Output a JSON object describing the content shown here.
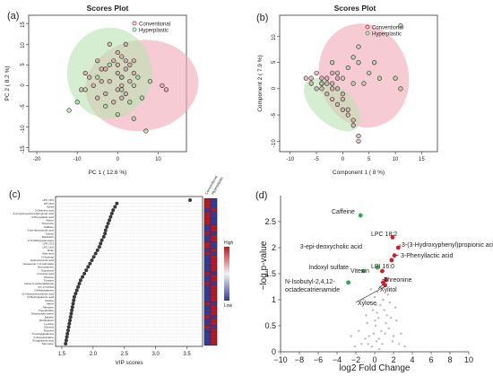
{
  "panels": {
    "a": {
      "letter": "(a)"
    },
    "b": {
      "letter": "(b)"
    },
    "c": {
      "letter": "(c)"
    },
    "d": {
      "letter": "(d)"
    }
  },
  "colors": {
    "conventional": "#c73556",
    "hyperplastic": "#3aa843",
    "conventional_fill": "#f2a9b6",
    "hyperplastic_fill": "#b9e2b3",
    "heat_high": "#c0171b",
    "heat_low": "#2f3d99",
    "volcano_gray": "#b9b9b9",
    "volcano_green": "#2ea84a",
    "volcano_red": "#d21f2a"
  },
  "chart_data": [
    {
      "id": "a",
      "type": "scatter",
      "title": "Scores Plot",
      "xlabel": "PC 1 ( 12.6 %)",
      "ylabel": "PC 2 ( 8.2 %)",
      "xlim": [
        -22,
        17
      ],
      "ylim": [
        -16,
        17
      ],
      "xticks": [
        -20,
        -10,
        0,
        10
      ],
      "yticks": [
        -15,
        -10,
        -5,
        0,
        5,
        10,
        15
      ],
      "legend": [
        "Conventional",
        "Hyperplastic"
      ],
      "legend_position": "top-right",
      "series": [
        {
          "name": "Conventional",
          "points": [
            [
              -8,
              3
            ],
            [
              -5,
              6
            ],
            [
              -4,
              4
            ],
            [
              -3,
              -2
            ],
            [
              -2,
              10
            ],
            [
              -1,
              6
            ],
            [
              0,
              5
            ],
            [
              0,
              3
            ],
            [
              0,
              -1
            ],
            [
              1,
              7
            ],
            [
              1,
              2
            ],
            [
              1,
              0
            ],
            [
              2,
              4
            ],
            [
              2,
              -2
            ],
            [
              3,
              5
            ],
            [
              3,
              1
            ],
            [
              -6,
              0
            ],
            [
              -5,
              -3
            ],
            [
              -1,
              -4
            ],
            [
              -7,
              2
            ],
            [
              -9,
              -1
            ],
            [
              4,
              3
            ],
            [
              0,
              8
            ],
            [
              2,
              10
            ],
            [
              -3,
              4
            ],
            [
              11,
              0
            ],
            [
              12,
              -1
            ],
            [
              1,
              -3
            ],
            [
              -2,
              1
            ],
            [
              4,
              6
            ],
            [
              -4,
              1
            ],
            [
              2,
              6
            ]
          ]
        },
        {
          "name": "Hyperplastic",
          "points": [
            [
              -12,
              -6
            ],
            [
              -10,
              -4
            ],
            [
              -8,
              -1
            ],
            [
              -5,
              2
            ],
            [
              -2,
              5
            ],
            [
              1,
              -1
            ],
            [
              3,
              -4
            ],
            [
              5,
              2
            ],
            [
              6,
              -3
            ],
            [
              7,
              -11
            ],
            [
              8,
              1
            ],
            [
              -3,
              -5
            ],
            [
              0,
              -7
            ],
            [
              4,
              -8
            ],
            [
              1,
              2
            ],
            [
              4,
              0
            ]
          ]
        }
      ]
    },
    {
      "id": "b",
      "type": "scatter",
      "title": "Scores Plot",
      "xlabel": "Component 1 ( 8 %)",
      "ylabel": "Component 2 ( 7.9 %)",
      "xlim": [
        -12,
        18
      ],
      "ylim": [
        -12,
        14
      ],
      "xticks": [
        -10,
        -5,
        0,
        5,
        10,
        15
      ],
      "yticks": [
        -10,
        -5,
        0,
        5,
        10
      ],
      "legend": [
        "Conventional",
        "Hyperplastic"
      ],
      "legend_position": "top-right",
      "series": [
        {
          "name": "Conventional",
          "points": [
            [
              -7,
              2
            ],
            [
              -6,
              1
            ],
            [
              -5,
              3
            ],
            [
              -4,
              1
            ],
            [
              -4,
              0
            ],
            [
              -3,
              2
            ],
            [
              -3,
              -1
            ],
            [
              -2,
              3
            ],
            [
              -2,
              1
            ],
            [
              -2,
              -2
            ],
            [
              -1,
              0
            ],
            [
              -1,
              -3
            ],
            [
              0,
              -2
            ],
            [
              0,
              -4
            ],
            [
              1,
              -4
            ],
            [
              2,
              -6
            ],
            [
              2,
              -7
            ],
            [
              3,
              -9
            ],
            [
              3,
              -10
            ],
            [
              -5,
              0
            ],
            [
              -4,
              2
            ],
            [
              -3,
              1
            ],
            [
              -2,
              0
            ],
            [
              -1,
              2
            ],
            [
              1,
              -5
            ],
            [
              0,
              -1
            ],
            [
              -6,
              2
            ]
          ]
        },
        {
          "name": "Hyperplastic",
          "points": [
            [
              -2,
              5
            ],
            [
              -1,
              3
            ],
            [
              1,
              4
            ],
            [
              2,
              6
            ],
            [
              3,
              8
            ],
            [
              3,
              5
            ],
            [
              4,
              1
            ],
            [
              5,
              3
            ],
            [
              2,
              1
            ],
            [
              10,
              2
            ],
            [
              11,
              0
            ],
            [
              11,
              12
            ],
            [
              -4,
              1
            ],
            [
              0,
              2
            ],
            [
              6,
              5
            ],
            [
              7,
              2
            ]
          ]
        }
      ]
    },
    {
      "id": "c",
      "type": "scatter",
      "xlabel": "VIP scores",
      "xlim": [
        1.4,
        3.75
      ],
      "xticks": [
        1.5,
        2.0,
        2.5,
        3.0,
        3.5
      ],
      "heatmap_columns": [
        "Conventional",
        "Hyperplastic"
      ],
      "heatmap_legend": [
        "High",
        "Low"
      ],
      "features": [
        "LPC 18:2",
        "LPI 16:0",
        "Xylitol",
        "3-Deamino acid",
        "3-(3-Hydroxyphenyl)propionic acid",
        "3-Phenyllactic acid",
        "Vitexin",
        "Threonine",
        "Caffeine",
        "3-epi-deoxycholic acid",
        "Xylose",
        "Bacitracin",
        "3'-O-Methylguanosine",
        "LPE 20:3",
        "LPC 16:0",
        "Rutin",
        "Oleic acid",
        "N-Isobutyl",
        "Hydrocinnamic acid",
        "Hesperetin 7-O-rutinoside",
        "Hyoscyamine",
        "Ergosterol",
        "Cinnamic acid",
        "Nicotine",
        "Tyrosine",
        "Indole-3-carboxaldehyde",
        "PC 17:0/16:0",
        "N-Methylalanine",
        "12-Hydroxyeicosanoic acid",
        "N-Methylglutamic acid",
        "Choline",
        "Valine",
        "Palmitine",
        "Theophylline",
        "Dihydroxybenzene",
        "Betaine",
        "Dethiobiotin",
        "Leucine",
        "Glycerol",
        "Thymine",
        "N-Acetylglutamine",
        "O-Acetylcarnitine",
        "Pyroglutamic acid",
        "Sarcosine"
      ],
      "values": [
        3.55,
        2.38,
        2.35,
        2.32,
        2.3,
        2.28,
        2.26,
        2.24,
        2.22,
        2.2,
        2.19,
        2.17,
        2.14,
        2.12,
        2.1,
        2.07,
        2.04,
        2.01,
        1.98,
        1.95,
        1.92,
        1.89,
        1.86,
        1.83,
        1.8,
        1.78,
        1.76,
        1.74,
        1.72,
        1.7,
        1.69,
        1.68,
        1.67,
        1.66,
        1.65,
        1.64,
        1.63,
        1.62,
        1.61,
        1.6,
        1.59,
        1.58,
        1.57,
        1.56
      ],
      "heat": [
        [
          0.95,
          0.05
        ],
        [
          0.9,
          0.1
        ],
        [
          0.9,
          0.1
        ],
        [
          0.1,
          0.9
        ],
        [
          0.9,
          0.1
        ],
        [
          0.9,
          0.1
        ],
        [
          0.85,
          0.15
        ],
        [
          0.85,
          0.15
        ],
        [
          0.1,
          0.9
        ],
        [
          0.1,
          0.9
        ],
        [
          0.85,
          0.15
        ],
        [
          0.15,
          0.85
        ],
        [
          0.2,
          0.8
        ],
        [
          0.8,
          0.2
        ],
        [
          0.85,
          0.15
        ],
        [
          0.15,
          0.85
        ],
        [
          0.85,
          0.15
        ],
        [
          0.1,
          0.9
        ],
        [
          0.15,
          0.85
        ],
        [
          0.2,
          0.8
        ],
        [
          0.15,
          0.85
        ],
        [
          0.2,
          0.8
        ],
        [
          0.8,
          0.2
        ],
        [
          0.15,
          0.85
        ],
        [
          0.2,
          0.8
        ],
        [
          0.8,
          0.2
        ],
        [
          0.15,
          0.85
        ],
        [
          0.2,
          0.8
        ],
        [
          0.15,
          0.85
        ],
        [
          0.2,
          0.8
        ],
        [
          0.15,
          0.85
        ],
        [
          0.8,
          0.2
        ],
        [
          0.15,
          0.85
        ],
        [
          0.2,
          0.8
        ],
        [
          0.15,
          0.85
        ],
        [
          0.85,
          0.15
        ],
        [
          0.2,
          0.8
        ],
        [
          0.15,
          0.85
        ],
        [
          0.8,
          0.2
        ],
        [
          0.15,
          0.85
        ],
        [
          0.2,
          0.8
        ],
        [
          0.15,
          0.85
        ],
        [
          0.2,
          0.8
        ],
        [
          0.15,
          0.85
        ]
      ]
    },
    {
      "id": "d",
      "type": "scatter",
      "xlabel": "log2 Fold Change",
      "ylabel": "−log p-value",
      "xlim": [
        -10,
        10
      ],
      "ylim": [
        0,
        3
      ],
      "xticks": [
        -10,
        -8,
        -6,
        -4,
        -2,
        0,
        2,
        4,
        6,
        8,
        10
      ],
      "yticks": [
        0,
        0.5,
        1,
        1.5,
        2,
        2.5
      ],
      "labeled_points": [
        {
          "label": "Caffeine",
          "x": -1.5,
          "y": 2.62,
          "group": "down"
        },
        {
          "label": "LPC 18:2",
          "x": 1.9,
          "y": 2.2,
          "group": "up"
        },
        {
          "label": "3-(3-Hydroxyphenyl)propionic acid",
          "x": 2.5,
          "y": 2.0,
          "group": "up"
        },
        {
          "label": "3-Phenyllactic acid",
          "x": 2.1,
          "y": 1.85,
          "group": "up"
        },
        {
          "label": "3-epi-deoxycholic acid",
          "x": 0.3,
          "y": 1.62,
          "group": "down"
        },
        {
          "label": "LPI 16:0",
          "x": 1.8,
          "y": 1.76,
          "group": "up"
        },
        {
          "label": "Indoxyl sulfate",
          "x": -1.2,
          "y": 1.55,
          "group": "down"
        },
        {
          "label": "Vitexin",
          "x": 0.8,
          "y": 1.55,
          "group": "up"
        },
        {
          "label": "N-Isobutyl-2,4,12-octadecatrienamide",
          "x": -2.8,
          "y": 1.33,
          "group": "down"
        },
        {
          "label": "Threonine",
          "x": 1.2,
          "y": 1.38,
          "group": "up"
        },
        {
          "label": "Xylitol",
          "x": 0.9,
          "y": 1.33,
          "group": "up"
        },
        {
          "label": "Xylose",
          "x": 1.1,
          "y": 1.28,
          "group": "up"
        }
      ],
      "background_points": [
        [
          -0.3,
          0.1
        ],
        [
          0.2,
          0.2
        ],
        [
          0.5,
          0.05
        ],
        [
          -0.6,
          0.3
        ],
        [
          0.8,
          0.15
        ],
        [
          1.1,
          0.35
        ],
        [
          -1.0,
          0.25
        ],
        [
          0.1,
          0.5
        ],
        [
          0.4,
          0.65
        ],
        [
          -0.2,
          0.8
        ],
        [
          0.6,
          0.9
        ],
        [
          1.3,
          0.7
        ],
        [
          -0.8,
          0.55
        ],
        [
          1.5,
          0.45
        ],
        [
          2.0,
          0.3
        ],
        [
          -1.4,
          0.15
        ],
        [
          0.0,
          1.05
        ],
        [
          0.3,
          1.15
        ],
        [
          -0.4,
          1.2
        ],
        [
          0.9,
          1.0
        ],
        [
          1.6,
          0.95
        ],
        [
          2.3,
          0.6
        ],
        [
          -1.7,
          0.4
        ],
        [
          0.7,
          0.4
        ],
        [
          -0.1,
          0.35
        ],
        [
          1.9,
          0.2
        ],
        [
          2.6,
          0.15
        ],
        [
          -2.1,
          0.1
        ],
        [
          0.25,
          0.75
        ],
        [
          1.2,
          0.55
        ],
        [
          -0.9,
          0.7
        ],
        [
          0.55,
          1.25
        ],
        [
          1.4,
          1.1
        ],
        [
          -0.5,
          0.95
        ],
        [
          2.8,
          0.35
        ],
        [
          3.2,
          0.1
        ],
        [
          -2.5,
          0.3
        ],
        [
          0.15,
          0.9
        ],
        [
          1.0,
          0.8
        ],
        [
          -1.2,
          1.0
        ],
        [
          0.45,
          0.25
        ],
        [
          1.7,
          0.65
        ],
        [
          0.05,
          0.6
        ],
        [
          -0.7,
          0.15
        ],
        [
          2.2,
          0.85
        ]
      ]
    }
  ]
}
